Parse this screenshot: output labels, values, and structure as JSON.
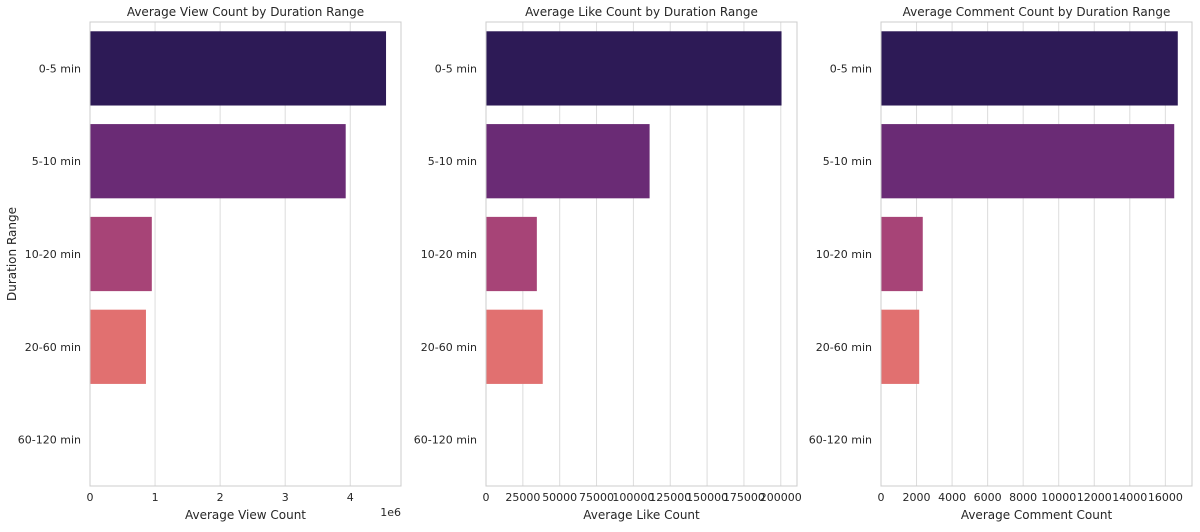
{
  "figure": {
    "ylabel": "Duration Range",
    "colors": [
      "#2d1a56",
      "#6a2b75",
      "#a74477",
      "#e17070",
      "#f6a680"
    ]
  },
  "chart_data": [
    {
      "type": "bar",
      "orientation": "horizontal",
      "title": "Average View Count by Duration Range",
      "xlabel": "Average View Count",
      "ylabel": "Duration Range",
      "categories": [
        "0-5 min",
        "5-10 min",
        "10-20 min",
        "20-60 min",
        "60-120 min"
      ],
      "values": [
        4550000,
        3930000,
        950000,
        860000,
        0
      ],
      "xlim": [
        0,
        4780000
      ],
      "xticks": [
        0,
        1000000,
        2000000,
        3000000,
        4000000
      ],
      "xtick_labels": [
        "0",
        "1",
        "2",
        "3",
        "4"
      ],
      "offset_text": "1e6",
      "grid": "x"
    },
    {
      "type": "bar",
      "orientation": "horizontal",
      "title": "Average Like Count by Duration Range",
      "xlabel": "Average Like Count",
      "ylabel": "",
      "categories": [
        "0-5 min",
        "5-10 min",
        "10-20 min",
        "20-60 min",
        "60-120 min"
      ],
      "values": [
        200500,
        111000,
        34500,
        38500,
        0
      ],
      "xlim": [
        0,
        211000
      ],
      "xticks": [
        0,
        25000,
        50000,
        75000,
        100000,
        125000,
        150000,
        175000,
        200000
      ],
      "xtick_labels": [
        "0",
        "25000",
        "50000",
        "75000",
        "100000",
        "125000",
        "150000",
        "175000",
        "200000"
      ],
      "grid": "x"
    },
    {
      "type": "bar",
      "orientation": "horizontal",
      "title": "Average Comment Count by Duration Range",
      "xlabel": "Average Comment Count",
      "ylabel": "",
      "categories": [
        "0-5 min",
        "5-10 min",
        "10-20 min",
        "20-60 min",
        "60-120 min"
      ],
      "values": [
        16700,
        16500,
        2350,
        2150,
        0
      ],
      "xlim": [
        0,
        17500
      ],
      "xticks": [
        0,
        2000,
        4000,
        6000,
        8000,
        10000,
        12000,
        14000,
        16000
      ],
      "xtick_labels": [
        "0",
        "2000",
        "4000",
        "6000",
        "8000",
        "10000",
        "12000",
        "14000",
        "16000"
      ],
      "grid": "x"
    }
  ]
}
